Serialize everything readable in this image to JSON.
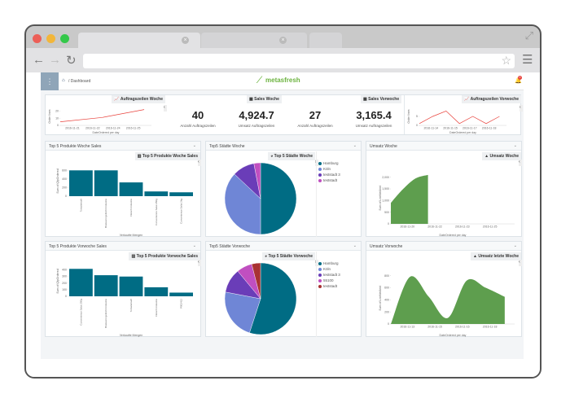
{
  "browser": {
    "tab_close": "×",
    "star": "☆",
    "menu": "☰",
    "expand": "⤢",
    "back": "←",
    "forward": "→",
    "reload": "↻"
  },
  "app": {
    "menu_icon": "⋮",
    "breadcrumb": "/ Dashboard",
    "logo": "metasfresh",
    "notification_count": "0",
    "brand_color": "#6cb33f"
  },
  "kpi": [
    {
      "title": "Sales Woche",
      "items": [
        {
          "value": "40",
          "caption": "Anzahl Auftragszeilen"
        },
        {
          "value": "4,924.7",
          "caption": "Umsatz Auftragszeilen"
        }
      ]
    },
    {
      "title": "Sales Vorwoche",
      "items": [
        {
          "value": "27",
          "caption": "Anzahl Auftragszeilen"
        },
        {
          "value": "3,165.4",
          "caption": "Umsatz Auftragszeilen"
        }
      ]
    }
  ],
  "chart_data": [
    {
      "id": "lw",
      "type": "line",
      "title": "Auftragszeilen Woche",
      "ylabel": "Order lines",
      "xlabel": "DateOrdered per day",
      "x": [
        "2016-11-20",
        "2016-11-21",
        "2016-11-22"
      ],
      "values": [
        5,
        11,
        22
      ],
      "xticks": [
        "2016-11-21",
        "2016-11-22",
        "2016-11-24",
        "2016-11-25"
      ],
      "ylim": [
        0,
        25
      ],
      "yticks": [
        0,
        10,
        20
      ],
      "color": "#e8403a"
    },
    {
      "id": "lv",
      "type": "line",
      "title": "Auftragszeilen Vorwoche",
      "ylabel": "Order lines",
      "xlabel": "DateOrdered per day",
      "x": [
        "2016-11-12",
        "2016-11-13",
        "2016-11-14",
        "2016-11-15",
        "2016-11-16",
        "2016-11-17",
        "2016-11-18"
      ],
      "values": [
        1,
        5,
        8,
        1,
        5,
        1,
        5
      ],
      "xticks": [
        "2016-11-14",
        "2016-11-15",
        "2016-11-17",
        "2016-11-18"
      ],
      "ylim": [
        0,
        10
      ],
      "yticks": [
        0,
        5
      ],
      "color": "#e8403a"
    },
    {
      "id": "bw",
      "type": "bar",
      "panel": "Top 5 Produkte Woche Sales",
      "title": "Top 5 Produkte Woche Sales",
      "ylabel": "Sum of QtyOrdered",
      "xlabel": "Verkaufte Mengen",
      "categories": [
        "Tomatensaft",
        "Bratwurst gebrüht Industrie",
        "Fleisch Industrie",
        "Convenience Salat 250g",
        "Convenience Salat 2kg"
      ],
      "values": [
        600,
        600,
        320,
        110,
        90
      ],
      "ylim": [
        0,
        700
      ],
      "yticks": [
        0,
        200,
        400,
        600
      ],
      "color": "#006c84"
    },
    {
      "id": "pw",
      "type": "pie",
      "panel": "Top5 Städte Woche",
      "title": "Top 5 Städte Woche",
      "labels": [
        "Hamburg",
        "Köln",
        "teststadt 3",
        "teststadt"
      ],
      "values": [
        50,
        37,
        10,
        3
      ],
      "colors": [
        "#006c84",
        "#6f86d6",
        "#6a3db8",
        "#c04fc0"
      ]
    },
    {
      "id": "aw",
      "type": "area",
      "panel": "Umsatz Woche",
      "title": "Umsatz Woche",
      "ylabel": "Sum of LineNetAmt",
      "xlabel": "DateOrdered per day",
      "x": [
        "2016-11-19",
        "2016-11-20",
        "2016-11-21",
        "2016-11-22"
      ],
      "values": [
        900,
        1500,
        1950,
        2100
      ],
      "xticks": [
        "2016-11-20",
        "2016-11-22",
        "2016-11-23",
        "2016-11-25"
      ],
      "ylim": [
        0,
        2200
      ],
      "yticks": [
        0,
        500,
        1000,
        1500,
        2000
      ],
      "color": "#5e9e4e"
    },
    {
      "id": "bv",
      "type": "bar",
      "panel": "Top 5 Produkte Vorwoche Sales",
      "title": "Top 5 Produkte Vorwoche Sales",
      "ylabel": "Sum of QtyOrdered",
      "xlabel": "Verkaufte Mengen",
      "categories": [
        "Convenience Salat 250g",
        "Bratwurst gebrüht Industrie",
        "Tomatensaft",
        "Fleisch Industrie",
        "P002412"
      ],
      "values": [
        410,
        315,
        295,
        135,
        55
      ],
      "ylim": [
        0,
        450
      ],
      "yticks": [
        0,
        100,
        200,
        300,
        400
      ],
      "color": "#006c84"
    },
    {
      "id": "pv",
      "type": "pie",
      "panel": "Top5 Städte Vorwoche",
      "title": "Top 5 Städte Vorwoche",
      "labels": [
        "Hamburg",
        "Köln",
        "teststadt 3",
        "55100",
        "teststadt"
      ],
      "values": [
        55,
        23,
        11,
        7,
        4
      ],
      "colors": [
        "#006c84",
        "#6f86d6",
        "#6a3db8",
        "#c04fc0",
        "#a83232"
      ]
    },
    {
      "id": "av",
      "type": "area",
      "panel": "Umsatz Vorwoche",
      "title": "Umsatz letzte Woche",
      "ylabel": "Sum of LineNetAmt",
      "xlabel": "DateOrdered per day",
      "x": [
        "2016-11-12",
        "2016-11-13",
        "2016-11-14",
        "2016-11-15",
        "2016-11-16",
        "2016-11-17",
        "2016-11-18"
      ],
      "values": [
        0,
        780,
        450,
        100,
        720,
        600,
        450
      ],
      "xticks": [
        "2016-11-13",
        "2016-11-15",
        "2016-11-16",
        "2016-11-18"
      ],
      "ylim": [
        0,
        850
      ],
      "yticks": [
        0,
        200,
        400,
        600,
        800
      ],
      "color": "#5e9e4e"
    }
  ]
}
